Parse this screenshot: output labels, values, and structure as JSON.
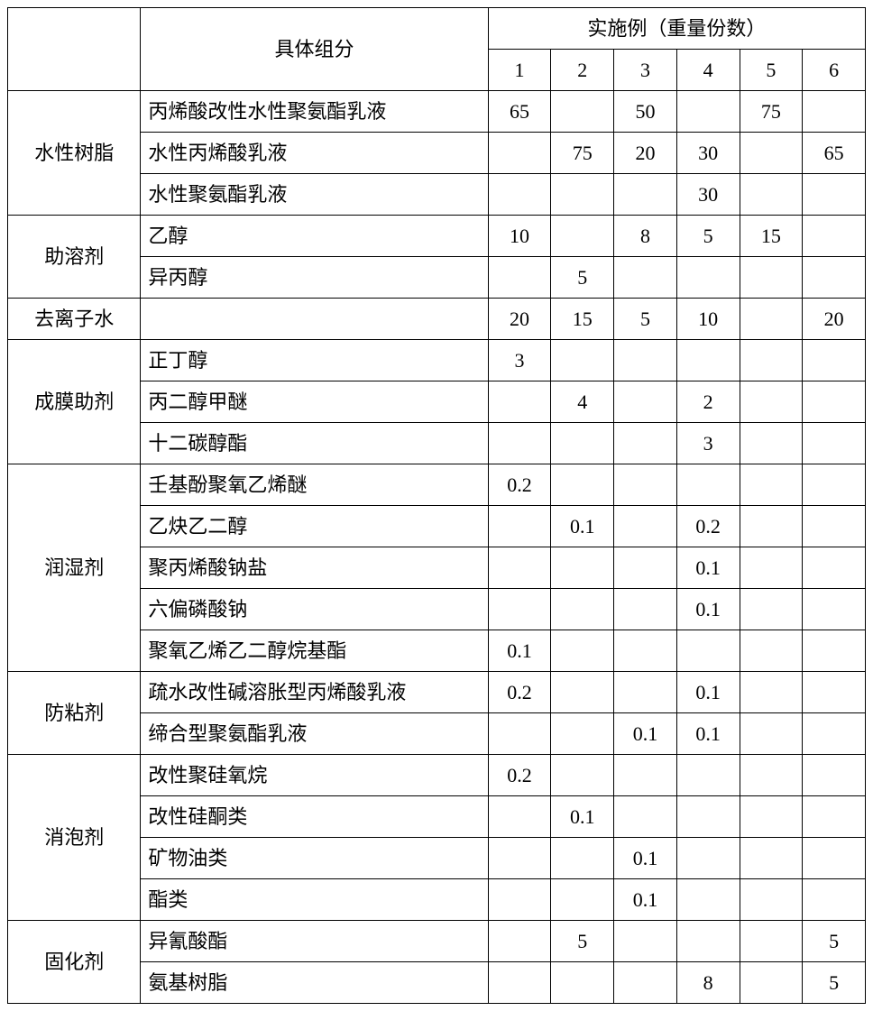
{
  "header": {
    "component": "具体组分",
    "examples": "实施例（重量份数）",
    "cols": [
      "1",
      "2",
      "3",
      "4",
      "5",
      "6"
    ]
  },
  "groups": [
    {
      "name": "水性树脂",
      "rows": [
        {
          "comp": "丙烯酸改性水性聚氨酯乳液",
          "v": [
            "65",
            "",
            "50",
            "",
            "75",
            ""
          ]
        },
        {
          "comp": "水性丙烯酸乳液",
          "v": [
            "",
            "75",
            "20",
            "30",
            "",
            "65"
          ]
        },
        {
          "comp": "水性聚氨酯乳液",
          "v": [
            "",
            "",
            "",
            "30",
            "",
            ""
          ]
        }
      ]
    },
    {
      "name": "助溶剂",
      "rows": [
        {
          "comp": "乙醇",
          "v": [
            "10",
            "",
            "8",
            "5",
            "15",
            ""
          ]
        },
        {
          "comp": "异丙醇",
          "v": [
            "",
            "5",
            "",
            "",
            "",
            ""
          ]
        }
      ]
    },
    {
      "name": "去离子水",
      "rows": [
        {
          "comp": "",
          "v": [
            "20",
            "15",
            "5",
            "10",
            "",
            "20"
          ]
        }
      ]
    },
    {
      "name": "成膜助剂",
      "rows": [
        {
          "comp": "正丁醇",
          "v": [
            "3",
            "",
            "",
            "",
            "",
            ""
          ]
        },
        {
          "comp": "丙二醇甲醚",
          "v": [
            "",
            "4",
            "",
            "2",
            "",
            ""
          ]
        },
        {
          "comp": "十二碳醇酯",
          "v": [
            "",
            "",
            "",
            "3",
            "",
            ""
          ]
        }
      ]
    },
    {
      "name": "润湿剂",
      "rows": [
        {
          "comp": "壬基酚聚氧乙烯醚",
          "v": [
            "0.2",
            "",
            "",
            "",
            "",
            ""
          ]
        },
        {
          "comp": "乙炔乙二醇",
          "v": [
            "",
            "0.1",
            "",
            "0.2",
            "",
            ""
          ]
        },
        {
          "comp": "聚丙烯酸钠盐",
          "v": [
            "",
            "",
            "",
            "0.1",
            "",
            ""
          ]
        },
        {
          "comp": "六偏磷酸钠",
          "v": [
            "",
            "",
            "",
            "0.1",
            "",
            ""
          ]
        },
        {
          "comp": "聚氧乙烯乙二醇烷基酯",
          "v": [
            "0.1",
            "",
            "",
            "",
            "",
            ""
          ]
        }
      ]
    },
    {
      "name": "防粘剂",
      "rows": [
        {
          "comp": "疏水改性碱溶胀型丙烯酸乳液",
          "v": [
            "0.2",
            "",
            "",
            "0.1",
            "",
            ""
          ]
        },
        {
          "comp": "缔合型聚氨酯乳液",
          "v": [
            "",
            "",
            "0.1",
            "0.1",
            "",
            ""
          ]
        }
      ]
    },
    {
      "name": "消泡剂",
      "rows": [
        {
          "comp": "改性聚硅氧烷",
          "v": [
            "0.2",
            "",
            "",
            "",
            "",
            ""
          ]
        },
        {
          "comp": "改性硅酮类",
          "v": [
            "",
            "0.1",
            "",
            "",
            "",
            ""
          ]
        },
        {
          "comp": "矿物油类",
          "v": [
            "",
            "",
            "0.1",
            "",
            "",
            ""
          ]
        },
        {
          "comp": "酯类",
          "v": [
            "",
            "",
            "0.1",
            "",
            "",
            ""
          ]
        }
      ]
    },
    {
      "name": "固化剂",
      "rows": [
        {
          "comp": "异氰酸酯",
          "v": [
            "",
            "5",
            "",
            "",
            "",
            "5"
          ]
        },
        {
          "comp": "氨基树脂",
          "v": [
            "",
            "",
            "",
            "8",
            "",
            "5"
          ]
        }
      ]
    }
  ]
}
